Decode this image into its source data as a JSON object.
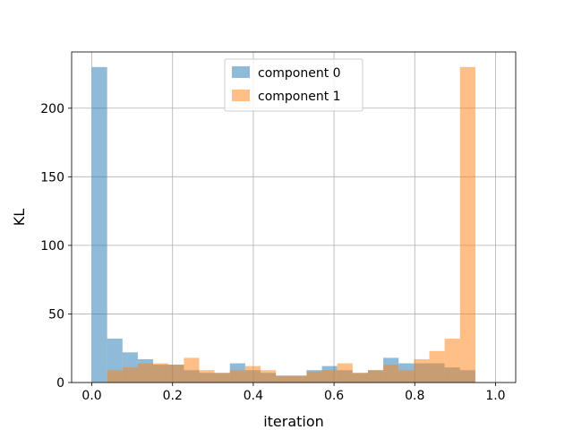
{
  "chart_data": {
    "type": "bar",
    "subtype": "overlapping-histogram",
    "title": "",
    "xlabel": "iteration",
    "ylabel": "KL",
    "xlim": [
      -0.05,
      1.05
    ],
    "ylim": [
      0,
      241
    ],
    "xticks": [
      0.0,
      0.2,
      0.4,
      0.6,
      0.8,
      1.0
    ],
    "xtick_labels": [
      "0.0",
      "0.2",
      "0.4",
      "0.6",
      "0.8",
      "1.0"
    ],
    "yticks": [
      0,
      50,
      100,
      150,
      200
    ],
    "ytick_labels": [
      "0",
      "50",
      "100",
      "150",
      "200"
    ],
    "grid": true,
    "legend": "upper-center",
    "bin_width": 0.038,
    "bin_edges_start": 0.0,
    "series": [
      {
        "name": "component 0",
        "color": "#1f77b4",
        "alpha": 0.5,
        "values": [
          230,
          32,
          22,
          17,
          13,
          13,
          9,
          7,
          7,
          14,
          9,
          7,
          5,
          5,
          9,
          12,
          9,
          7,
          9,
          18,
          14,
          14,
          14,
          11,
          9,
          0
        ]
      },
      {
        "name": "component 1",
        "color": "#ff7f0e",
        "alpha": 0.5,
        "values": [
          0,
          9,
          11,
          14,
          14,
          13,
          18,
          9,
          7,
          9,
          12,
          9,
          5,
          5,
          8,
          9,
          14,
          7,
          9,
          13,
          9,
          17,
          23,
          32,
          230,
          0
        ]
      }
    ]
  }
}
